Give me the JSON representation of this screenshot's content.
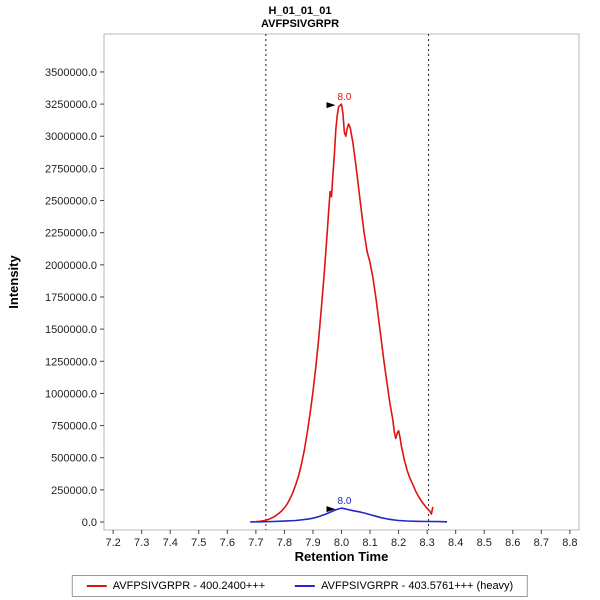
{
  "header": {
    "title_line1": "H_01_01_01",
    "title_line2": "AVFPSIVGRPR"
  },
  "legend": {
    "items": [
      {
        "label": "AVFPSIVGRPR - 400.2400+++",
        "color": "#e01313"
      },
      {
        "label": "AVFPSIVGRPR - 403.5761+++ (heavy)",
        "color": "#2626cc"
      }
    ]
  },
  "chart_data": {
    "type": "line",
    "title": "H_01_01_01 - AVFPSIVGRPR",
    "xlabel": "Retention Time",
    "ylabel": "Intensity",
    "grid": false,
    "legend_position": "bottom",
    "xlim": [
      7.168,
      8.832
    ],
    "ylim": [
      -62000,
      3795000
    ],
    "x_ticks": [
      7.2,
      7.3,
      7.4,
      7.5,
      7.6,
      7.7,
      7.8,
      7.9,
      8.0,
      8.1,
      8.2,
      8.3,
      8.4,
      8.5,
      8.6,
      8.7,
      8.8
    ],
    "y_ticks": [
      0,
      250000,
      500000,
      750000,
      1000000,
      1250000,
      1500000,
      1750000,
      2000000,
      2250000,
      2500000,
      2750000,
      3000000,
      3250000,
      3500000
    ],
    "integration_boundaries": [
      7.735,
      8.305
    ],
    "series": [
      {
        "name": "AVFPSIVGRPR - 400.2400+++",
        "color": "#e01313",
        "peak_rt": 8.0,
        "apex_intensity": 3250000,
        "x": [
          7.7,
          7.71,
          7.72,
          7.73,
          7.74,
          7.75,
          7.76,
          7.77,
          7.78,
          7.79,
          7.8,
          7.81,
          7.82,
          7.83,
          7.84,
          7.85,
          7.86,
          7.87,
          7.88,
          7.89,
          7.9,
          7.91,
          7.92,
          7.93,
          7.94,
          7.95,
          7.955,
          7.96,
          7.965,
          7.97,
          7.975,
          7.98,
          7.985,
          7.99,
          8.0,
          8.005,
          8.01,
          8.015,
          8.02,
          8.025,
          8.03,
          8.04,
          8.05,
          8.06,
          8.07,
          8.08,
          8.09,
          8.1,
          8.11,
          8.12,
          8.13,
          8.14,
          8.15,
          8.16,
          8.17,
          8.18,
          8.185,
          8.19,
          8.195,
          8.2,
          8.205,
          8.21,
          8.22,
          8.23,
          8.24,
          8.25,
          8.26,
          8.27,
          8.28,
          8.29,
          8.3,
          8.31,
          8.315,
          8.32
        ],
        "y": [
          3000,
          5000,
          8000,
          12000,
          18000,
          26000,
          36000,
          50000,
          66000,
          86000,
          110000,
          142000,
          182000,
          232000,
          292000,
          362000,
          452000,
          562000,
          692000,
          845000,
          1015000,
          1205000,
          1425000,
          1675000,
          1950000,
          2250000,
          2420000,
          2570000,
          2530000,
          2700000,
          2860000,
          3050000,
          3160000,
          3230000,
          3250000,
          3180000,
          3030000,
          3000000,
          3060000,
          3095000,
          3070000,
          2950000,
          2780000,
          2600000,
          2410000,
          2240000,
          2100000,
          2020000,
          1900000,
          1750000,
          1580000,
          1400000,
          1230000,
          1070000,
          920000,
          790000,
          700000,
          650000,
          690000,
          710000,
          660000,
          590000,
          485000,
          400000,
          340000,
          290000,
          240000,
          198000,
          163000,
          133000,
          106000,
          82000,
          62000,
          118000
        ]
      },
      {
        "name": "AVFPSIVGRPR - 403.5761+++ (heavy)",
        "color": "#2626cc",
        "peak_rt": 8.0,
        "apex_intensity": 108000,
        "x": [
          7.68,
          7.72,
          7.76,
          7.8,
          7.84,
          7.88,
          7.9,
          7.92,
          7.94,
          7.96,
          7.98,
          7.99,
          8.0,
          8.01,
          8.02,
          8.04,
          8.06,
          8.08,
          8.1,
          8.12,
          8.14,
          8.16,
          8.18,
          8.2,
          8.23,
          8.26,
          8.3,
          8.34,
          8.37
        ],
        "y": [
          1000,
          2000,
          4000,
          7000,
          12000,
          22000,
          30000,
          42000,
          58000,
          76000,
          94000,
          102000,
          108000,
          104000,
          98000,
          88000,
          80000,
          70000,
          58000,
          45000,
          33000,
          24000,
          17000,
          12000,
          8000,
          6000,
          4000,
          3000,
          2000
        ]
      }
    ],
    "annotations": [
      {
        "text": "8.0",
        "x": 8.0,
        "y": 3250000,
        "series": 0,
        "color": "#e01313"
      },
      {
        "text": "8.0",
        "x": 8.0,
        "y": 108000,
        "series": 1,
        "color": "#2626cc"
      }
    ]
  }
}
